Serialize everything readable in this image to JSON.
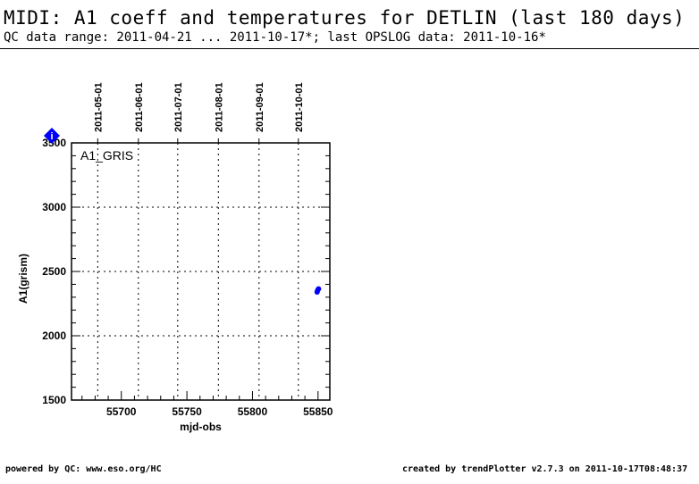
{
  "header": {
    "title": "MIDI: A1 coeff and temperatures for DETLIN (last 180 days)",
    "subtitle": "QC data range: 2011-04-21 ... 2011-10-17*; last OPSLOG data: 2011-10-16*"
  },
  "footer": {
    "left": "powered by QC: www.eso.org/HC",
    "right": "created by trendPlotter v2.7.3 on 2011-10-17T08:48:37"
  },
  "chart_data": {
    "type": "scatter",
    "panel_label": "A1_GRIS",
    "xlabel": "mjd-obs",
    "ylabel": "A1(grism)",
    "xlim": [
      55662,
      55859
    ],
    "ylim": [
      1500,
      3500
    ],
    "x_ticks": [
      55700,
      55750,
      55800,
      55850
    ],
    "x_tick_labels": [
      "55700",
      "55750",
      "55800",
      "55850"
    ],
    "y_ticks": [
      1500,
      2000,
      2500,
      3000,
      3500
    ],
    "y_tick_labels": [
      "1500",
      "2000",
      "2500",
      "3000",
      "3500"
    ],
    "date_ticks": [
      {
        "x": 55682,
        "label": "2011-05-01"
      },
      {
        "x": 55713,
        "label": "2011-06-01"
      },
      {
        "x": 55743,
        "label": "2011-07-01"
      },
      {
        "x": 55774,
        "label": "2011-08-01"
      },
      {
        "x": 55805,
        "label": "2011-09-01"
      },
      {
        "x": 55835,
        "label": "2011-10-01"
      }
    ],
    "grid": true,
    "marker_color": "#0000ff",
    "series": [
      {
        "x": [
          55849.3,
          55849.8,
          55850.4
        ],
        "y": [
          2340,
          2355,
          2365
        ]
      }
    ],
    "info_marker": {
      "symbol": "i",
      "color": "#0000ff"
    }
  }
}
